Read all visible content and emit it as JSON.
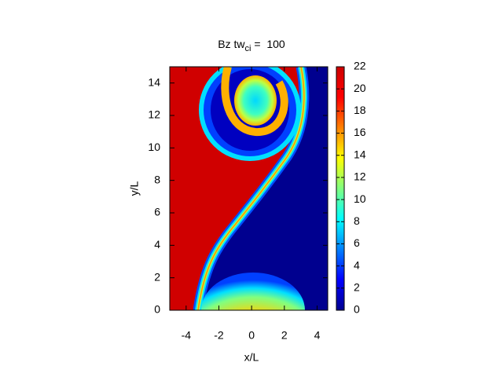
{
  "chart_data": {
    "type": "heatmap",
    "title": {
      "text": "Bz tw",
      "subscript": "ci",
      "suffix": " =  100"
    },
    "xlabel": "x/L",
    "ylabel": "y/L",
    "xlim": [
      -5,
      4.65
    ],
    "xticks": [
      -4,
      -2,
      0,
      2,
      4
    ],
    "ylim": [
      0,
      15
    ],
    "yticks": [
      0,
      2,
      4,
      6,
      8,
      10,
      12,
      14
    ],
    "zlim": [
      0,
      22
    ],
    "zticks": [
      0,
      2,
      4,
      6,
      8,
      10,
      12,
      14,
      16,
      18,
      20,
      22
    ],
    "colormap": [
      "#00008f",
      "#0000ff",
      "#0080ff",
      "#00ffff",
      "#80ff80",
      "#ffff00",
      "#ff8000",
      "#ff0000",
      "#cc0000"
    ]
  }
}
